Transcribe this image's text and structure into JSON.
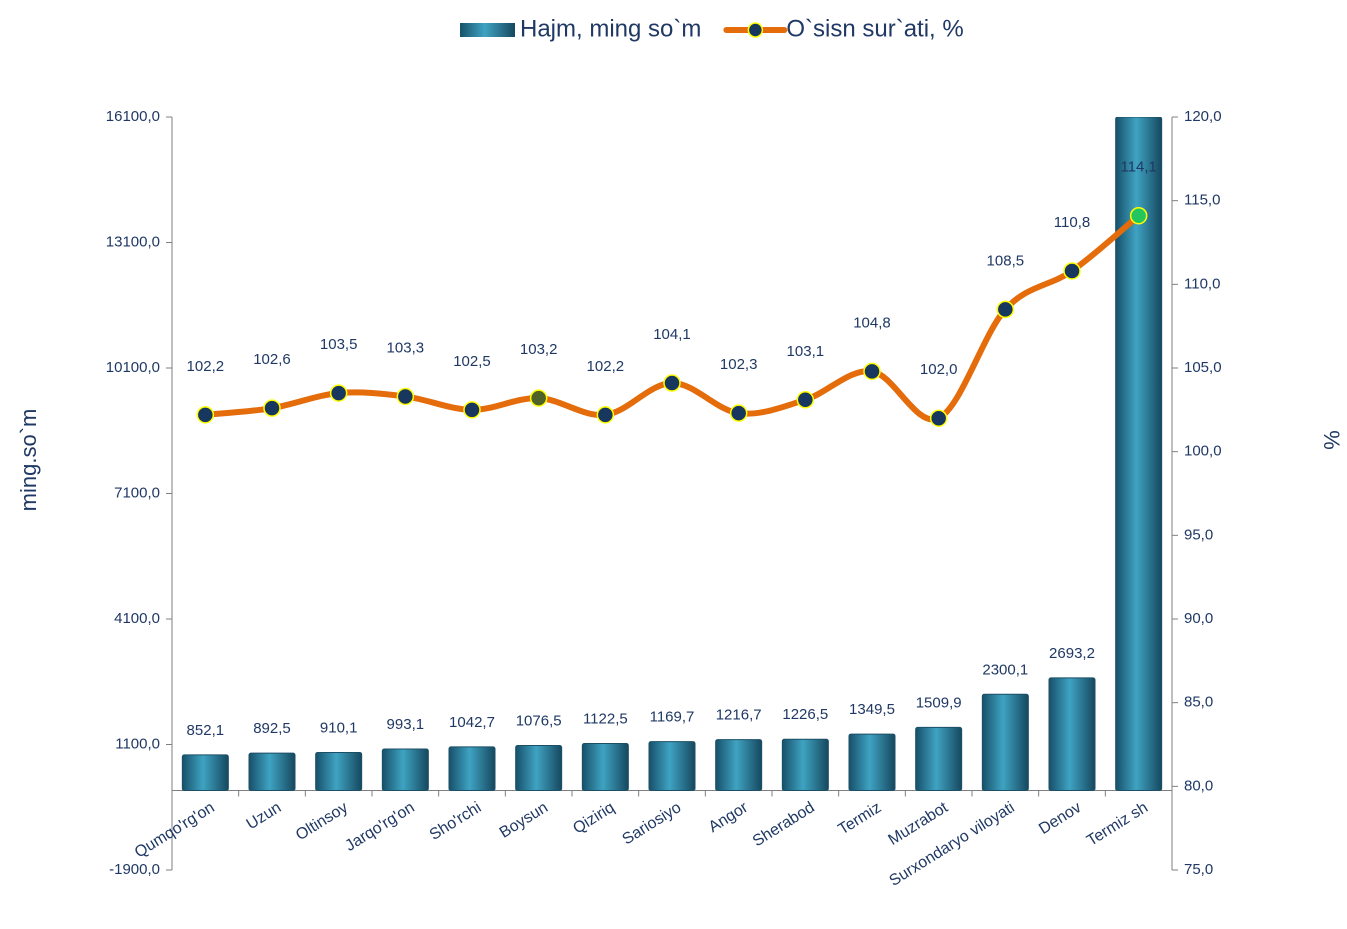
{
  "chart_data": {
    "type": "bar-line",
    "legend_position": "top",
    "y_label": "ming.so`m",
    "y2_label": "%",
    "categories": [
      "Qumqo'rg'on",
      "Uzun",
      "Oltinsoy",
      "Jarqo'rg'on",
      "Sho'rchi",
      "Boysun",
      "Qiziriq",
      "Sariosiyo",
      "Angor",
      "Sherabod",
      "Termiz",
      "Muzrabot",
      "Surxondaryo  viloyati",
      "Denov",
      "Termiz sh"
    ],
    "series": [
      {
        "name": "Hajm, ming so`m",
        "type": "bar",
        "color": "#2b7d98",
        "axis": "y",
        "values": [
          852.1,
          892.5,
          910.1,
          993.1,
          1042.7,
          1076.5,
          1122.5,
          1169.7,
          1216.7,
          1226.5,
          1349.5,
          1509.9,
          2300.1,
          2693.2,
          16100
        ],
        "value_labels": [
          "852,1",
          "892,5",
          "910,1",
          "993,1",
          "1042,7",
          "1076,5",
          "1122,5",
          "1169,7",
          "1216,7",
          "1226,5",
          "1349,5",
          "1509,9",
          "2300,1",
          "2693,2",
          null
        ]
      },
      {
        "name": "O`sisn sur`ati, %",
        "type": "line",
        "color": "#e46c0a",
        "axis": "y2",
        "marker_color": "#17375e",
        "marker_colors": [
          "#17375e",
          "#17375e",
          "#17375e",
          "#17375e",
          "#17375e",
          "#4f6228",
          "#17375e",
          "#17375e",
          "#17375e",
          "#17375e",
          "#17375e",
          "#17375e",
          "#17375e",
          "#17375e",
          "#22c55e"
        ],
        "values": [
          102.2,
          102.6,
          103.5,
          103.3,
          102.5,
          103.2,
          102.2,
          104.1,
          102.3,
          103.1,
          104.8,
          102.0,
          108.5,
          110.8,
          114.1
        ],
        "value_labels": [
          "102,2",
          "102,6",
          "103,5",
          "103,3",
          "102,5",
          "103,2",
          "102,2",
          "104,1",
          "102,3",
          "103,1",
          "104,8",
          "102,0",
          "108,5",
          "110,8",
          "114,1"
        ]
      }
    ],
    "ylim": [
      -1900,
      16100
    ],
    "yticks": [
      {
        "value": -1900,
        "label": "-1900,0"
      },
      {
        "value": 1100,
        "label": "1100,0"
      },
      {
        "value": 4100,
        "label": "4100,0"
      },
      {
        "value": 7100,
        "label": "7100,0"
      },
      {
        "value": 10100,
        "label": "10100,0"
      },
      {
        "value": 13100,
        "label": "13100,0"
      },
      {
        "value": 16100,
        "label": "16100,0"
      }
    ],
    "y2lim": [
      75,
      120
    ],
    "y2ticks": [
      {
        "value": 75,
        "label": "75,0"
      },
      {
        "value": 80,
        "label": "80,0"
      },
      {
        "value": 85,
        "label": "85,0"
      },
      {
        "value": 90,
        "label": "90,0"
      },
      {
        "value": 95,
        "label": "95,0"
      },
      {
        "value": 100,
        "label": "100,0"
      },
      {
        "value": 105,
        "label": "105,0"
      },
      {
        "value": 110,
        "label": "110,0"
      },
      {
        "value": 115,
        "label": "115,0"
      },
      {
        "value": 120,
        "label": "120,0"
      }
    ]
  }
}
